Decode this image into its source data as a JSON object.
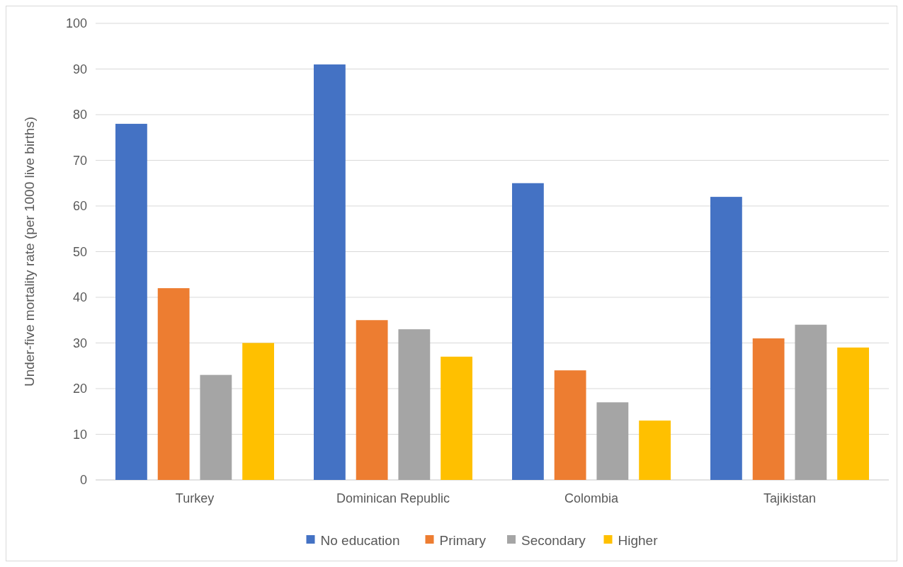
{
  "chart_data": {
    "type": "bar",
    "ylabel": "Under-five mortality rate (per 1000 live births)",
    "categories": [
      "Turkey",
      "Dominican Republic",
      "Colombia",
      "Tajikistan"
    ],
    "series": [
      {
        "name": "No education",
        "color": "#4472c4",
        "values": [
          78,
          91,
          65,
          62
        ]
      },
      {
        "name": "Primary",
        "color": "#ed7d31",
        "values": [
          42,
          35,
          24,
          31
        ]
      },
      {
        "name": "Secondary",
        "color": "#a5a5a5",
        "values": [
          23,
          33,
          17,
          34
        ]
      },
      {
        "name": "Higher",
        "color": "#ffc000",
        "values": [
          30,
          27,
          13,
          29
        ]
      }
    ],
    "ylim": [
      0,
      100
    ],
    "yticks": [
      0,
      10,
      20,
      30,
      40,
      50,
      60,
      70,
      80,
      90,
      100
    ],
    "grid": "y",
    "legend": "bottom"
  }
}
